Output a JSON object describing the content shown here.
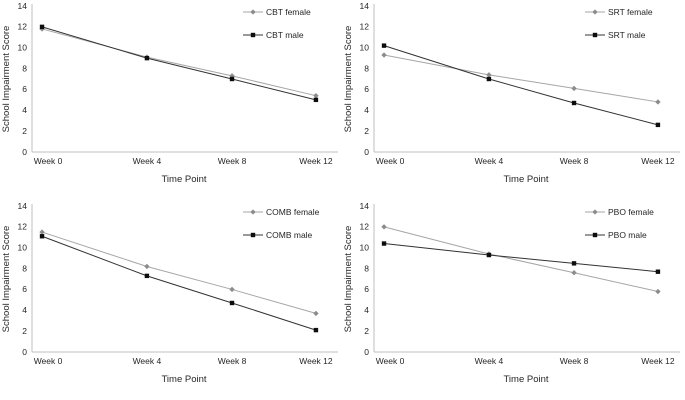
{
  "page": {
    "background": "#ffffff"
  },
  "colors": {
    "female_line": "#a6a6a6",
    "female_marker": "#8c8c8c",
    "male_line": "#333333",
    "male_marker": "#0d0d0d",
    "axis_line": "#bfbfbf",
    "text": "#262626"
  },
  "chart_data": [
    {
      "type": "line",
      "panel": "top-left",
      "categories": [
        "Week 0",
        "Week 4",
        "Week 8",
        "Week 12"
      ],
      "series": [
        {
          "name": "CBT female",
          "values": [
            11.8,
            9.1,
            7.3,
            5.4
          ],
          "role": "female",
          "marker": "diamond"
        },
        {
          "name": "CBT male",
          "values": [
            12.0,
            9.0,
            7.0,
            5.0
          ],
          "role": "male",
          "marker": "square"
        }
      ],
      "xlabel": "Time Point",
      "ylabel": "School Impairment Score",
      "ylim": [
        0,
        14
      ],
      "ytick_step": 2,
      "grid": false,
      "legend_position": "top-right-inside"
    },
    {
      "type": "line",
      "panel": "top-right",
      "categories": [
        "Week 0",
        "Week 4",
        "Week 8",
        "Week 12"
      ],
      "series": [
        {
          "name": "SRT female",
          "values": [
            9.3,
            7.4,
            6.1,
            4.8
          ],
          "role": "female",
          "marker": "diamond"
        },
        {
          "name": "SRT male",
          "values": [
            10.2,
            7.0,
            4.7,
            2.6
          ],
          "role": "male",
          "marker": "square"
        }
      ],
      "xlabel": "Time Point",
      "ylabel": "School Impairment Score",
      "ylim": [
        0,
        14
      ],
      "ytick_step": 2,
      "grid": false,
      "legend_position": "top-right-inside"
    },
    {
      "type": "line",
      "panel": "bottom-left",
      "categories": [
        "Week 0",
        "Week 4",
        "Week 8",
        "Week 12"
      ],
      "series": [
        {
          "name": "COMB female",
          "values": [
            11.5,
            8.2,
            6.0,
            3.7
          ],
          "role": "female",
          "marker": "diamond"
        },
        {
          "name": "COMB male",
          "values": [
            11.1,
            7.3,
            4.7,
            2.1
          ],
          "role": "male",
          "marker": "square"
        }
      ],
      "xlabel": "Time Point",
      "ylabel": "School Impairment Score",
      "ylim": [
        0,
        14
      ],
      "ytick_step": 2,
      "grid": false,
      "legend_position": "top-right-inside"
    },
    {
      "type": "line",
      "panel": "bottom-right",
      "categories": [
        "Week 0",
        "Week 4",
        "Week 8",
        "Week 12"
      ],
      "series": [
        {
          "name": "PBO female",
          "values": [
            12.0,
            9.4,
            7.6,
            5.8
          ],
          "role": "female",
          "marker": "diamond"
        },
        {
          "name": "PBO male",
          "values": [
            10.4,
            9.3,
            8.5,
            7.7
          ],
          "role": "male",
          "marker": "square"
        }
      ],
      "xlabel": "Time Point",
      "ylabel": "School Impairment Score",
      "ylim": [
        0,
        14
      ],
      "ytick_step": 2,
      "grid": false,
      "legend_position": "top-right-inside"
    }
  ]
}
